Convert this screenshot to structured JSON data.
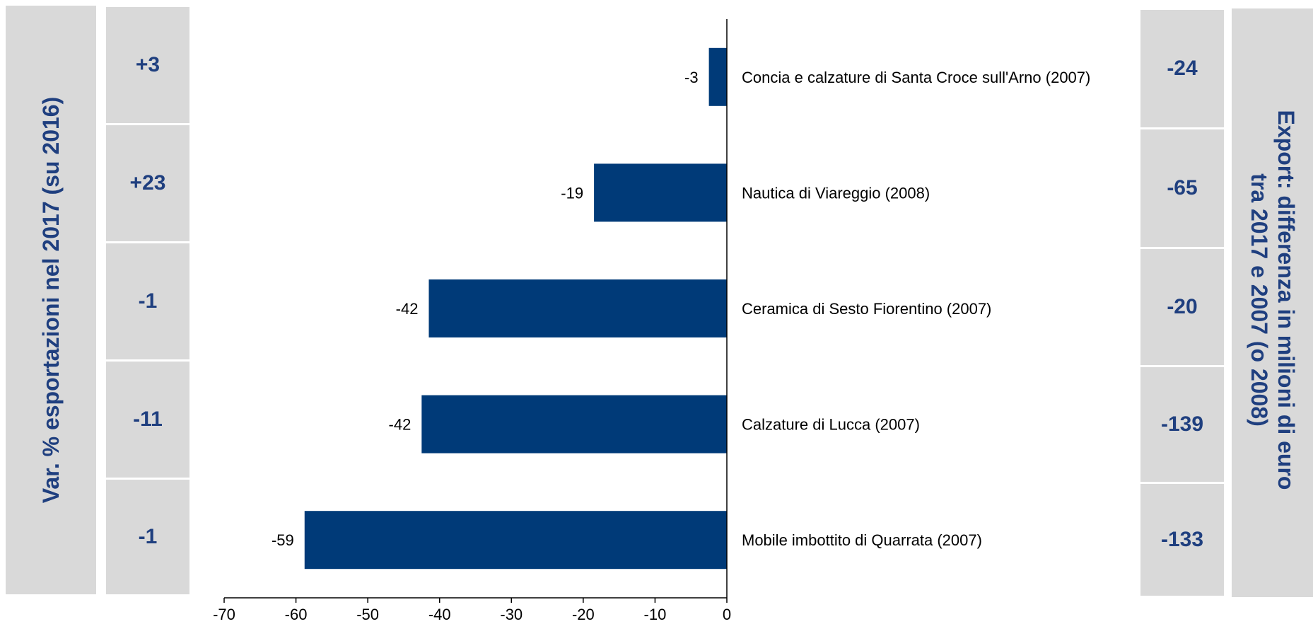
{
  "left_panel": {
    "title": "Var. % esportazioni nel 2017 (su 2016)",
    "values": [
      "+3",
      "+23",
      "-1",
      "-11",
      "-1"
    ]
  },
  "right_panel": {
    "title_line1": "Export: differenza in milioni di euro",
    "title_line2": "tra 2017  e 2007 (o 2008)",
    "values": [
      "-24",
      "-65",
      "-20",
      "-139",
      "-133"
    ]
  },
  "colors": {
    "bar": "#003a78",
    "panel": "#d9d9d9",
    "panel_text": "#1f3f7f"
  },
  "chart_data": {
    "type": "bar",
    "orientation": "horizontal",
    "categories": [
      "Concia e calzature di Santa Croce sull'Arno (2007)",
      "Nautica di Viareggio (2008)",
      "Ceramica di Sesto Fiorentino (2007)",
      "Calzature di Lucca (2007)",
      "Mobile imbottito di Quarrata (2007)"
    ],
    "values": [
      -2.5,
      -18.5,
      -41.5,
      -42.5,
      -58.8
    ],
    "data_labels": [
      "-3",
      "-19",
      "-42",
      "-42",
      "-59"
    ],
    "xlim": [
      -70,
      0
    ],
    "xticks": [
      -70,
      -60,
      -50,
      -40,
      -30,
      -20,
      -10,
      0
    ],
    "grid": false
  }
}
